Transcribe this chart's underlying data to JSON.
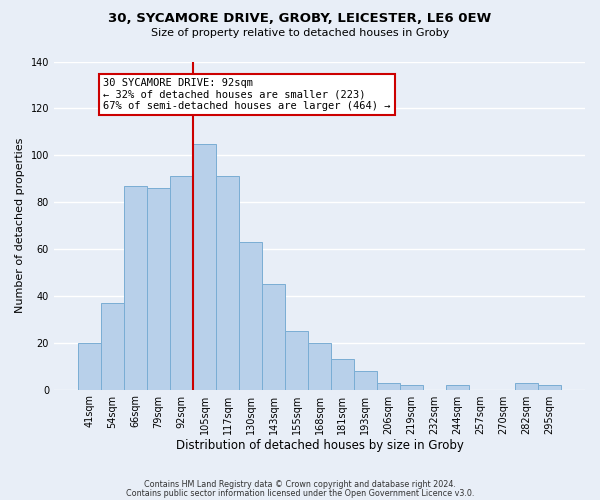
{
  "title1": "30, SYCAMORE DRIVE, GROBY, LEICESTER, LE6 0EW",
  "title2": "Size of property relative to detached houses in Groby",
  "xlabel": "Distribution of detached houses by size in Groby",
  "ylabel": "Number of detached properties",
  "bar_labels": [
    "41sqm",
    "54sqm",
    "66sqm",
    "79sqm",
    "92sqm",
    "105sqm",
    "117sqm",
    "130sqm",
    "143sqm",
    "155sqm",
    "168sqm",
    "181sqm",
    "193sqm",
    "206sqm",
    "219sqm",
    "232sqm",
    "244sqm",
    "257sqm",
    "270sqm",
    "282sqm",
    "295sqm"
  ],
  "bar_heights": [
    20,
    37,
    87,
    86,
    91,
    105,
    91,
    63,
    45,
    25,
    20,
    13,
    8,
    3,
    2,
    0,
    2,
    0,
    0,
    3,
    2
  ],
  "bar_color": "#b8d0ea",
  "bar_edge_color": "#7aadd4",
  "vline_color": "#cc0000",
  "ylim": [
    0,
    140
  ],
  "yticks": [
    0,
    20,
    40,
    60,
    80,
    100,
    120,
    140
  ],
  "annotation_title": "30 SYCAMORE DRIVE: 92sqm",
  "annotation_line1": "← 32% of detached houses are smaller (223)",
  "annotation_line2": "67% of semi-detached houses are larger (464) →",
  "annotation_box_color": "#ffffff",
  "annotation_box_edge": "#cc0000",
  "footer1": "Contains HM Land Registry data © Crown copyright and database right 2024.",
  "footer2": "Contains public sector information licensed under the Open Government Licence v3.0.",
  "background_color": "#e8eef7",
  "plot_background": "#e8eef7",
  "grid_color": "#ffffff",
  "title1_fontsize": 9.5,
  "title2_fontsize": 8.0,
  "ylabel_fontsize": 8.0,
  "xlabel_fontsize": 8.5,
  "tick_fontsize": 7.0,
  "annot_fontsize": 7.5,
  "footer_fontsize": 5.8
}
